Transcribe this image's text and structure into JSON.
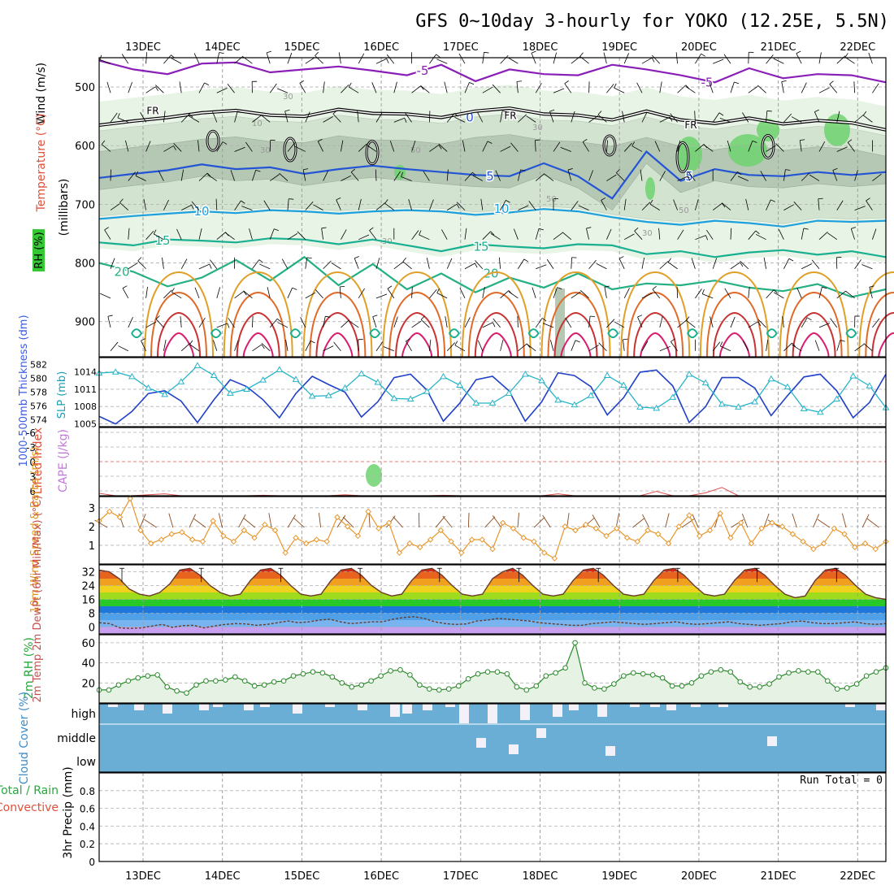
{
  "title": "GFS 0~10day 3-hourly for YOKO (12.25E, 5.5N)",
  "chart_data": {
    "type": "meteogram",
    "date_labels": [
      "13DEC",
      "14DEC",
      "15DEC",
      "16DEC",
      "17DEC",
      "18DEC",
      "19DEC",
      "20DEC",
      "21DEC",
      "22DEC"
    ],
    "upper_air": {
      "ylabel": "(millibars)",
      "side_labels": [
        "Wind (m/s)",
        "Temperature (°C)",
        "RH (%)"
      ],
      "pressure_ticks": [
        500,
        600,
        700,
        800,
        900
      ],
      "plim": [
        450,
        960
      ],
      "freezing_label": "FR",
      "isotherms": [
        {
          "label": "-5",
          "color": "#8a1fb8",
          "values": [
            455,
            470,
            478,
            460,
            458,
            475,
            470,
            465,
            472,
            480,
            462,
            490,
            470,
            478,
            480,
            462,
            470,
            480,
            492,
            468,
            485,
            478,
            480,
            492
          ]
        },
        {
          "label": "0",
          "color": "#ffffff",
          "values": [
            560,
            555,
            550,
            548,
            540,
            545,
            550,
            538,
            545,
            548,
            552,
            540,
            535,
            545,
            548,
            555,
            540,
            555,
            560,
            552,
            562,
            556,
            560,
            572
          ]
        },
        {
          "label": "5",
          "color": "#2454d6",
          "values": [
            655,
            648,
            642,
            632,
            640,
            637,
            648,
            640,
            634,
            640,
            645,
            650,
            652,
            630,
            652,
            690,
            610,
            660,
            640,
            650,
            652,
            645,
            650,
            645
          ]
        },
        {
          "label": "10",
          "color": "#1ea0dc",
          "values": [
            725,
            720,
            716,
            712,
            715,
            710,
            712,
            716,
            712,
            710,
            712,
            718,
            714,
            708,
            712,
            722,
            730,
            735,
            728,
            732,
            738,
            728,
            730,
            728
          ]
        },
        {
          "label": "15",
          "color": "#18b090",
          "values": [
            765,
            770,
            760,
            762,
            765,
            758,
            760,
            768,
            760,
            770,
            780,
            768,
            772,
            775,
            768,
            770,
            785,
            780,
            790,
            782,
            778,
            786,
            780,
            790
          ]
        },
        {
          "label": "20",
          "color": "#24b084",
          "values": [
            800,
            815,
            840,
            825,
            795,
            830,
            790,
            838,
            802,
            845,
            818,
            850,
            825,
            842,
            818,
            845,
            835,
            838,
            830,
            842,
            848,
            836,
            858,
            845
          ]
        }
      ],
      "freezing_level": [
        565,
        558,
        552,
        544,
        540,
        548,
        550,
        538,
        545,
        546,
        552,
        541,
        536,
        546,
        548,
        556,
        541,
        556,
        562,
        553,
        563,
        557,
        561,
        573
      ],
      "rh_labels": [
        "10",
        "30",
        "50"
      ]
    },
    "thickness_slp": {
      "ylabel_left": "1000-500mb Thickness (dm)",
      "ylabel_right": "SLP (mb)",
      "thickness_ticks": [
        582,
        580,
        578,
        576,
        574
      ],
      "slp_ticks": [
        1014,
        1011,
        1008,
        1005
      ],
      "thickness_series": [
        574.5,
        573.4,
        575.2,
        577.8,
        578.2,
        576.7,
        573.6,
        576.9,
        579.8,
        578.8,
        576.9,
        574.3,
        577.8,
        580.3,
        579.1,
        578.0,
        574.4,
        576.6,
        580.1,
        580.6,
        578.3,
        573.8,
        576.4,
        579.8,
        580.3,
        578.2,
        573.8,
        576.6,
        580.8,
        580.4,
        578.8,
        574.7,
        577.2,
        580.9,
        581.2,
        578.9,
        573.6,
        575.9,
        580.1,
        580.1,
        578.6,
        574.6,
        577.5,
        580.2,
        580.6,
        578.2,
        574.3,
        576.5,
        580.6
      ],
      "slp_series": [
        1013.8,
        1014.0,
        1013.2,
        1011.2,
        1010.1,
        1012.3,
        1015.1,
        1013.4,
        1010.3,
        1011.0,
        1012.6,
        1014.4,
        1012.7,
        1009.8,
        1009.9,
        1011.2,
        1013.7,
        1012.2,
        1009.4,
        1009.3,
        1010.6,
        1013.2,
        1011.7,
        1008.6,
        1008.6,
        1010.3,
        1013.6,
        1012.5,
        1009.1,
        1008.3,
        1009.9,
        1013.4,
        1011.7,
        1007.9,
        1007.7,
        1009.6,
        1013.6,
        1012.1,
        1008.4,
        1007.9,
        1008.8,
        1012.8,
        1011.4,
        1007.6,
        1007.0,
        1009.3,
        1013.3,
        1011.6,
        1007.8
      ]
    },
    "instability": {
      "ylabel_left": "Lifted Index",
      "ylabel_right": "CAPE (J/kg)",
      "li_ticks": [
        -6,
        -3,
        0,
        3,
        6
      ],
      "li_series": [
        6.5,
        7,
        7,
        6.8,
        6.6,
        7,
        7,
        7,
        7,
        7,
        6.9,
        7,
        7,
        7,
        7,
        6.8,
        7,
        7,
        7,
        7,
        7,
        6.9,
        7,
        7,
        7,
        7,
        7,
        7,
        6.6,
        7,
        7,
        7,
        7,
        7,
        6.1,
        7,
        7,
        6.4,
        5.3,
        7,
        7,
        7,
        7,
        7,
        7,
        7,
        7,
        7,
        7
      ]
    },
    "wind10m": {
      "ylabel": "10m Wind Speed & Barbs (m/s)",
      "ticks": [
        1,
        2,
        3
      ],
      "speed_series": [
        2.3,
        2.8,
        2.5,
        3.5,
        1.8,
        1.1,
        1.3,
        1.6,
        1.7,
        1.3,
        1.2,
        2.3,
        1.5,
        1.2,
        1.8,
        1.4,
        2.1,
        1.8,
        0.6,
        1.4,
        1.1,
        1.3,
        1.2,
        2.5,
        2.0,
        1.5,
        2.8,
        1.9,
        2.2,
        0.6,
        1.1,
        0.9,
        1.3,
        1.8,
        1.2,
        0.6,
        1.3,
        1.3,
        0.8,
        2.2,
        1.9,
        1.4,
        1.2,
        0.6,
        0.3,
        2.0,
        1.8,
        2.1,
        1.9,
        1.5,
        1.9,
        1.4,
        1.2,
        1.8,
        1.6,
        1.1,
        2.0,
        2.6,
        1.5,
        1.8,
        2.7,
        1.4,
        2.2,
        1.1,
        1.9,
        2.2,
        2.0,
        1.6,
        1.2,
        0.8,
        1.1,
        1.9,
        1.6,
        0.9,
        1.1,
        0.8,
        1.2
      ]
    },
    "temp2m": {
      "ylabel": "2m Temp 2m DewPt (6hr Min/Max) (°C)",
      "ticks": [
        0,
        8,
        16,
        24,
        32
      ],
      "temp_series": [
        33,
        32,
        28,
        22,
        19,
        18,
        20,
        25,
        33,
        34,
        30,
        24,
        20,
        18,
        19,
        27,
        33,
        34,
        30,
        24,
        19,
        18,
        19,
        27,
        33,
        34,
        30,
        24,
        20,
        18,
        19,
        27,
        33,
        34,
        30,
        24,
        19,
        18,
        19,
        28,
        32,
        34,
        30,
        24,
        19,
        18,
        19,
        27,
        33,
        34,
        30,
        24,
        19,
        18,
        19,
        27,
        33,
        34,
        30,
        24,
        19,
        18,
        19,
        27,
        33,
        34,
        30,
        24,
        19,
        17,
        18,
        27,
        33,
        34,
        30,
        24,
        19,
        17,
        16
      ],
      "dewpoint_series": [
        2.5,
        2.0,
        -0.5,
        -0.8,
        -0.5,
        0.5,
        1.5,
        -0.2,
        0.8,
        1.0,
        -0.5,
        0.6,
        1.5,
        2.0,
        1.8,
        1.0,
        1.5,
        2.5,
        3.5,
        2.5,
        3.0,
        4.0,
        4.5,
        3.0,
        2.0,
        2.5,
        3.0,
        3.0,
        4.5,
        5.5,
        6.0,
        5.0,
        3.0,
        2.0,
        1.5,
        1.8,
        3.5,
        4.0,
        5.0,
        4.5,
        4.0,
        3.5,
        2.5,
        2.0,
        1.5,
        1.0,
        1.0,
        2.0,
        2.5,
        3.0,
        2.5,
        2.0,
        1.5,
        2.0,
        2.5,
        3.0,
        2.0,
        1.5,
        2.0,
        2.5,
        3.0,
        2.0,
        1.5,
        1.0,
        1.5,
        2.0,
        3.0,
        3.5,
        2.5,
        2.0,
        2.0,
        2.5,
        3.0,
        2.0,
        1.5,
        2.0
      ]
    },
    "rh2m": {
      "ylabel": "2m RH (%)",
      "ticks": [
        20,
        40,
        60
      ],
      "series": [
        13,
        13,
        18,
        22,
        25,
        27,
        28,
        16,
        12,
        10,
        18,
        22,
        22,
        23,
        26,
        22,
        17,
        18,
        21,
        22,
        27,
        29,
        31,
        30,
        26,
        20,
        16,
        18,
        22,
        27,
        32,
        33,
        28,
        18,
        14,
        13,
        14,
        17,
        24,
        29,
        31,
        31,
        29,
        16,
        13,
        17,
        27,
        30,
        35,
        60,
        20,
        15,
        14,
        19,
        27,
        30,
        29,
        28,
        25,
        17,
        17,
        20,
        27,
        31,
        33,
        31,
        21,
        16,
        16,
        19,
        26,
        30,
        32,
        31,
        31,
        22,
        14,
        15,
        19,
        27,
        31,
        35
      ]
    },
    "cloud_cover": {
      "ylabel": "Cloud Cover (%)",
      "layers": [
        "high",
        "middle",
        "low"
      ]
    },
    "precip": {
      "ylabel": "3hr Precip (mm)",
      "legend_total_rain": "Total / Rain",
      "legend_convective": "Convective",
      "ticks": [
        0,
        0.2,
        0.4,
        0.6,
        0.8
      ],
      "run_total_label": "Run Total = 0",
      "ylim": [
        0,
        1
      ]
    }
  }
}
